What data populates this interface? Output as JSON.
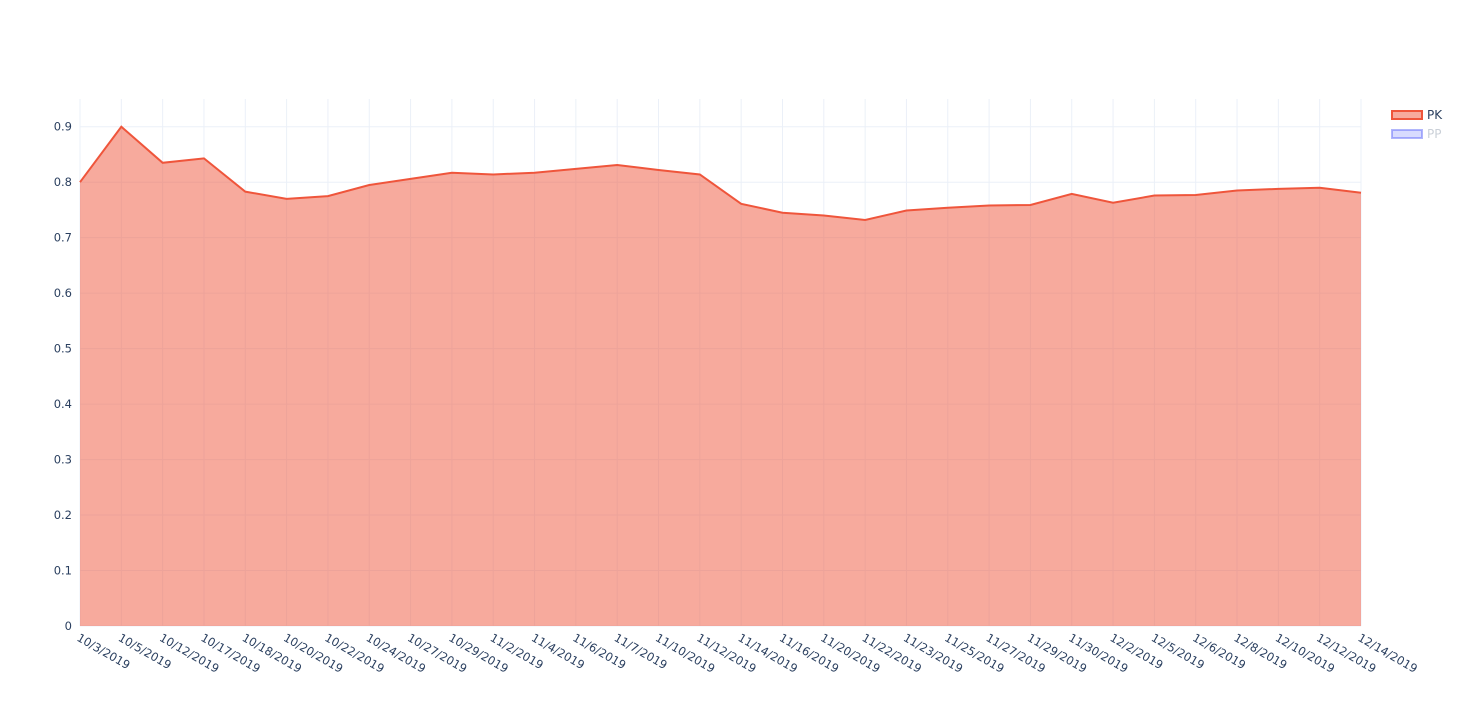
{
  "chart_data": {
    "type": "area",
    "categories": [
      "10/3/2019",
      "10/5/2019",
      "10/12/2019",
      "10/17/2019",
      "10/18/2019",
      "10/20/2019",
      "10/22/2019",
      "10/24/2019",
      "10/27/2019",
      "10/29/2019",
      "11/2/2019",
      "11/4/2019",
      "11/6/2019",
      "11/7/2019",
      "11/10/2019",
      "11/12/2019",
      "11/14/2019",
      "11/16/2019",
      "11/20/2019",
      "11/22/2019",
      "11/23/2019",
      "11/25/2019",
      "11/27/2019",
      "11/29/2019",
      "11/30/2019",
      "12/2/2019",
      "12/5/2019",
      "12/6/2019",
      "12/8/2019",
      "12/10/2019",
      "12/12/2019",
      "12/14/2019"
    ],
    "series": [
      {
        "name": "PK",
        "color": "#ef553b",
        "values": [
          0.8,
          0.9,
          0.835,
          0.843,
          0.783,
          0.77,
          0.775,
          0.795,
          0.806,
          0.817,
          0.814,
          0.817,
          0.824,
          0.831,
          0.822,
          0.814,
          0.761,
          0.745,
          0.74,
          0.732,
          0.749,
          0.754,
          0.758,
          0.759,
          0.779,
          0.763,
          0.776,
          0.777,
          0.785,
          0.788,
          0.79,
          0.781
        ]
      },
      {
        "name": "PP",
        "color": "#636efa",
        "visible": false
      }
    ],
    "ylim": [
      0,
      0.95
    ],
    "yticks": [
      0,
      0.1,
      0.2,
      0.3,
      0.4,
      0.5,
      0.6,
      0.7,
      0.8,
      0.9
    ],
    "grid": true
  }
}
